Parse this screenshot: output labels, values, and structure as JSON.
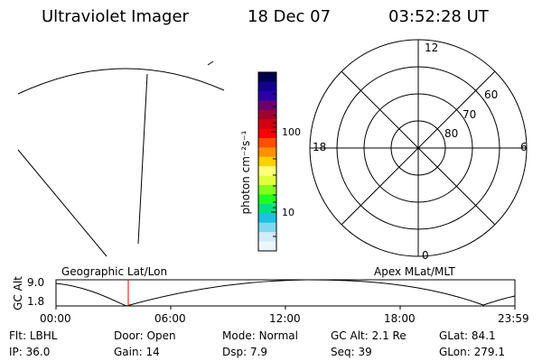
{
  "header": {
    "title": "Ultraviolet Imager",
    "date": "18 Dec 07",
    "time": "03:52:28 UT"
  },
  "colorbar": {
    "unit_label": "photon cm⁻²s⁻¹",
    "tick_labels": [
      "100",
      "10"
    ],
    "colors": [
      "#000050",
      "#14008c",
      "#2800aa",
      "#6a0070",
      "#a00030",
      "#d00010",
      "#ff0000",
      "#ff5000",
      "#ff9000",
      "#ffd000",
      "#ffff80",
      "#e0ff40",
      "#80ff20",
      "#20ff20",
      "#00e080",
      "#20c0e0",
      "#80d8f0",
      "#d0ecf4",
      "#ecf6f8"
    ]
  },
  "polar": {
    "labels": {
      "top": "12",
      "left": "18",
      "right": "6",
      "bottom": "0"
    },
    "lat_labels": [
      "60",
      "70",
      "80"
    ]
  },
  "timeline": {
    "left_title": "Geographic Lat/Lon",
    "right_title": "Apex MLat/MLT",
    "ylabel": "GC Alt",
    "y_ticks": [
      "9.0",
      "1.8"
    ],
    "x_ticks": [
      "00:00",
      "06:00",
      "12:00",
      "18:00",
      "23:59"
    ],
    "current_time_marker": "03:52"
  },
  "info": [
    {
      "label": "Flt:",
      "value": "LBHL"
    },
    {
      "label": "Door:",
      "value": "Open"
    },
    {
      "label": "Mode:",
      "value": "Normal"
    },
    {
      "label": "GC Alt:",
      "value": "2.1 Re"
    },
    {
      "label": "GLat:",
      "value": "84.1"
    },
    {
      "label": "IP:",
      "value": "36.0"
    },
    {
      "label": "Gain:",
      "value": "14"
    },
    {
      "label": "Dsp:",
      "value": "7.9"
    },
    {
      "label": "Seq:",
      "value": "39"
    },
    {
      "label": "GLon:",
      "value": "279.1"
    }
  ]
}
